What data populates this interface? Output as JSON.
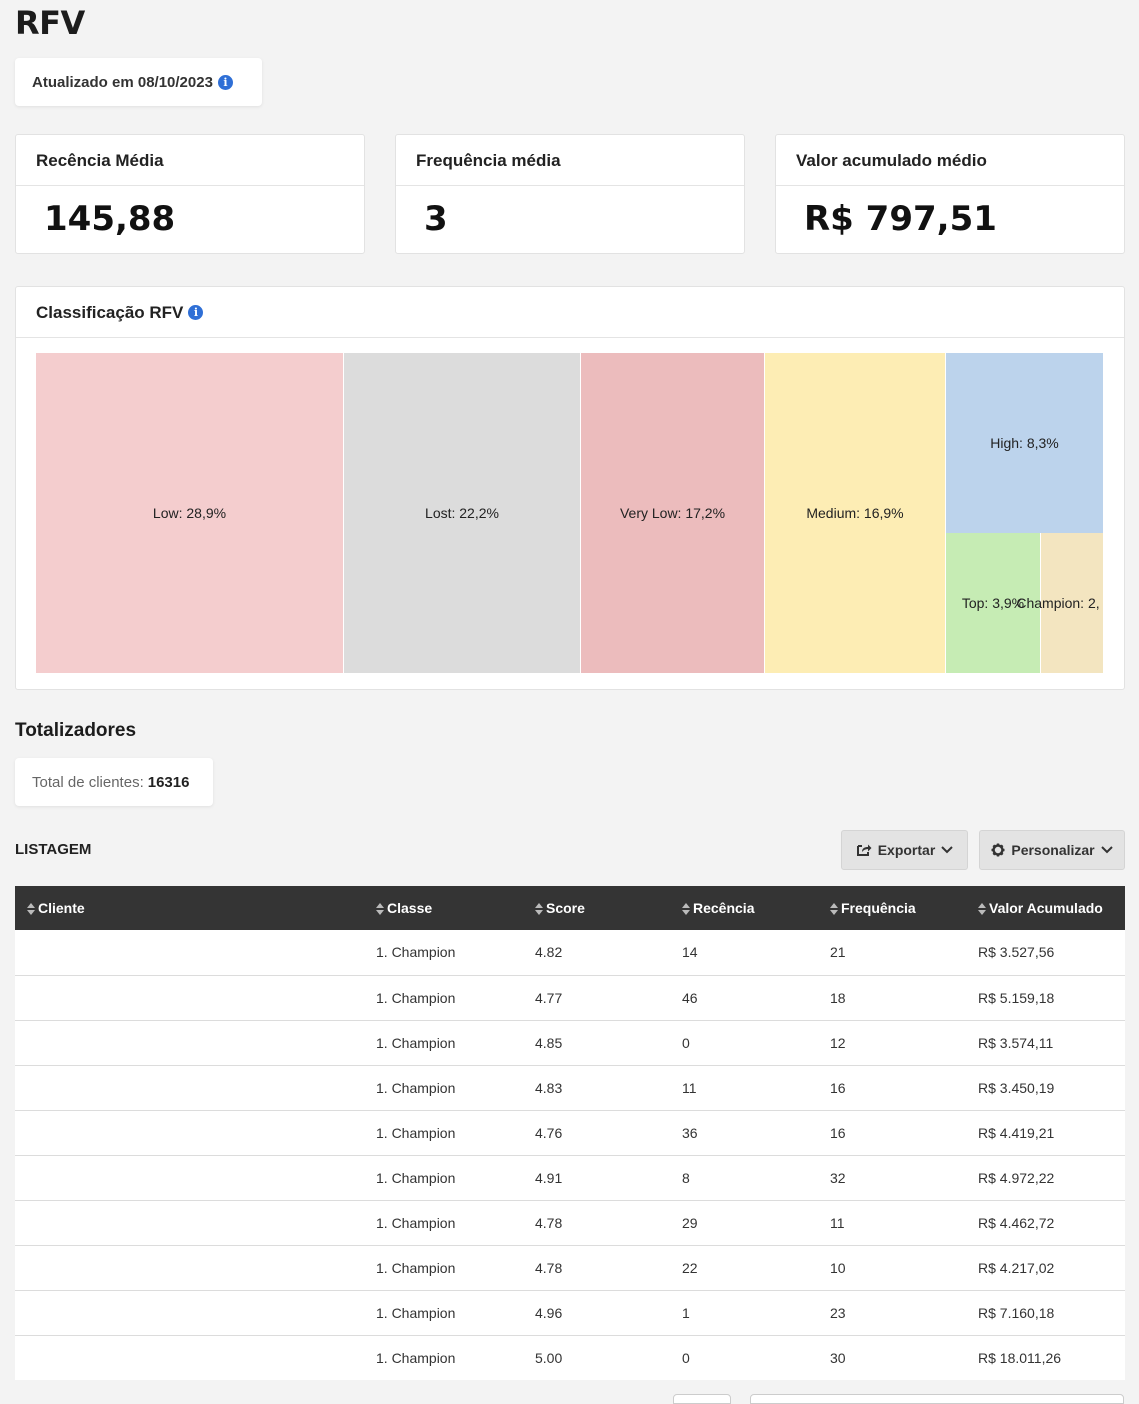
{
  "page": {
    "title": "RFV"
  },
  "updated": {
    "label": "Atualizado em 08/10/2023",
    "info_icon": "info-icon"
  },
  "kpis": [
    {
      "title": "Recência Média",
      "value": "145,88"
    },
    {
      "title": "Frequência média",
      "value": "3"
    },
    {
      "title": "Valor acumulado médio",
      "value": "R$ 797,51"
    }
  ],
  "classification": {
    "title": "Classificação RFV",
    "info_icon": "info-icon"
  },
  "chart_data": {
    "type": "treemap",
    "title": "Classificação RFV",
    "items": [
      {
        "label": "Low: 28,9%",
        "name": "Low",
        "percent": 28.9,
        "color": "#f4cdce"
      },
      {
        "label": "Lost: 22,2%",
        "name": "Lost",
        "percent": 22.2,
        "color": "#dcdcdc"
      },
      {
        "label": "Very Low: 17,2%",
        "name": "Very Low",
        "percent": 17.2,
        "color": "#ecbcbd"
      },
      {
        "label": "Medium: 16,9%",
        "name": "Medium",
        "percent": 16.9,
        "color": "#fdedb4"
      },
      {
        "label": "High: 8,3%",
        "name": "High",
        "percent": 8.3,
        "color": "#bcd3ec"
      },
      {
        "label": "Top: 3,9%",
        "name": "Top",
        "percent": 3.9,
        "color": "#c6ecb4"
      },
      {
        "label": "Champion: 2,",
        "name": "Champion",
        "color": "#f3e5c0"
      }
    ]
  },
  "totals": {
    "title": "Totalizadores",
    "clients_label": "Total de clientes:",
    "clients_value": "16316"
  },
  "listing": {
    "title": "LISTAGEM",
    "export_label": "Exportar",
    "customize_label": "Personalizar",
    "columns": [
      "Cliente",
      "Classe",
      "Score",
      "Recência",
      "Frequência",
      "Valor Acumulado"
    ],
    "rows": [
      [
        "",
        "1. Champion",
        "4.82",
        "14",
        "21",
        "R$ 3.527,56"
      ],
      [
        "",
        "1. Champion",
        "4.77",
        "46",
        "18",
        "R$ 5.159,18"
      ],
      [
        "",
        "1. Champion",
        "4.85",
        "0",
        "12",
        "R$ 3.574,11"
      ],
      [
        "",
        "1. Champion",
        "4.83",
        "11",
        "16",
        "R$ 3.450,19"
      ],
      [
        "",
        "1. Champion",
        "4.76",
        "36",
        "16",
        "R$ 4.419,21"
      ],
      [
        "",
        "1. Champion",
        "4.91",
        "8",
        "32",
        "R$ 4.972,22"
      ],
      [
        "",
        "1. Champion",
        "4.78",
        "29",
        "11",
        "R$ 4.462,72"
      ],
      [
        "",
        "1. Champion",
        "4.78",
        "22",
        "10",
        "R$ 4.217,02"
      ],
      [
        "",
        "1. Champion",
        "4.96",
        "1",
        "23",
        "R$ 7.160,18"
      ],
      [
        "",
        "1. Champion",
        "5.00",
        "0",
        "30",
        "R$ 18.011,26"
      ]
    ]
  }
}
